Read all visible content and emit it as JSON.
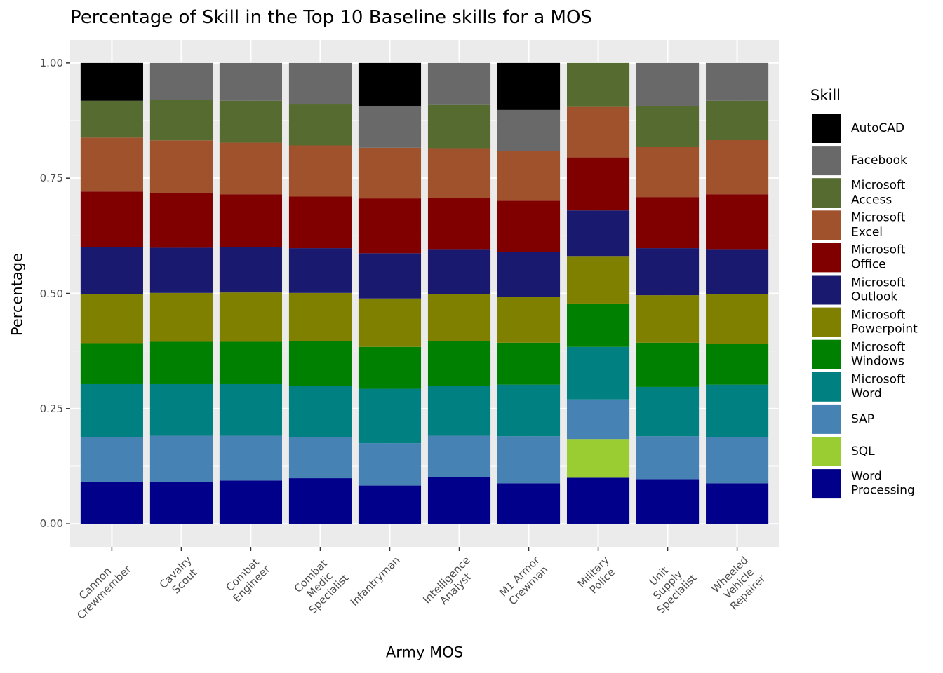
{
  "chart_data": {
    "type": "stacked-bar",
    "title": "Percentage of Skill in the Top 10 Baseline skills for a MOS",
    "x_label": "Army MOS",
    "y_label": "Percentage",
    "legend_title": "Skill",
    "legend_position": "right",
    "grid": true,
    "categories": [
      "Cannon\nCrewmember",
      "Cavalry\nScout",
      "Combat\nEngineer",
      "Combat\nMedic\nSpecialist",
      "Infantryman",
      "Intelligence\nAnalyst",
      "M1 Armor\nCrewman",
      "Military\nPolice",
      "Unit\nSupply\nSpecialist",
      "Wheeled\nVehicle\nRepairer"
    ],
    "ylim": [
      -0.05,
      1.05
    ],
    "yticks": [
      {
        "value": 0,
        "label": "0.00"
      },
      {
        "value": 0.25,
        "label": "0.25"
      },
      {
        "value": 0.5,
        "label": "0.50"
      },
      {
        "value": 0.75,
        "label": "0.75"
      },
      {
        "value": 1,
        "label": "1.00"
      }
    ],
    "series": [
      {
        "name": "AutoCAD",
        "color": "#000000",
        "values": [
          0.082,
          null,
          null,
          null,
          0.093,
          null,
          0.102,
          null,
          null,
          null
        ]
      },
      {
        "name": "Facebook",
        "color": "#696969",
        "values": [
          null,
          0.08,
          0.082,
          0.09,
          0.091,
          0.091,
          0.089,
          null,
          0.093,
          0.082
        ]
      },
      {
        "name": "Microsoft\nAccess",
        "color": "#556b2f",
        "values": [
          0.08,
          0.088,
          0.091,
          0.089,
          null,
          0.094,
          null,
          0.094,
          0.089,
          0.085
        ]
      },
      {
        "name": "Microsoft\nExcel",
        "color": "#a0522d",
        "values": [
          0.117,
          0.114,
          0.112,
          0.111,
          0.11,
          0.108,
          0.108,
          0.111,
          0.109,
          0.118
        ]
      },
      {
        "name": "Microsoft\nOffice",
        "color": "#800000",
        "values": [
          0.12,
          0.119,
          0.114,
          0.112,
          0.119,
          0.111,
          0.112,
          0.115,
          0.111,
          0.119
        ]
      },
      {
        "name": "Microsoft\nOutlook",
        "color": "#191970",
        "values": [
          0.102,
          0.098,
          0.099,
          0.097,
          0.098,
          0.098,
          0.096,
          0.099,
          0.102,
          0.098
        ]
      },
      {
        "name": "Microsoft\nPowerpoint",
        "color": "#808000",
        "values": [
          0.107,
          0.106,
          0.107,
          0.105,
          0.105,
          0.102,
          0.1,
          0.103,
          0.103,
          0.108
        ]
      },
      {
        "name": "Microsoft\nWindows",
        "color": "#008000",
        "values": [
          0.089,
          0.092,
          0.092,
          0.097,
          0.091,
          0.097,
          0.091,
          0.094,
          0.096,
          0.088
        ]
      },
      {
        "name": "Microsoft\nWord",
        "color": "#008080",
        "values": [
          0.115,
          0.112,
          0.112,
          0.111,
          0.118,
          0.108,
          0.112,
          0.114,
          0.107,
          0.114
        ]
      },
      {
        "name": "SAP",
        "color": "#4682b4",
        "values": [
          0.098,
          0.1,
          0.097,
          0.089,
          0.092,
          0.089,
          0.102,
          0.086,
          0.093,
          0.1
        ]
      },
      {
        "name": "SQL",
        "color": "#9acd32",
        "values": [
          null,
          null,
          null,
          null,
          null,
          null,
          null,
          0.084,
          null,
          null
        ]
      },
      {
        "name": "Word\nProcessing",
        "color": "#00008b",
        "values": [
          0.09,
          0.091,
          0.094,
          0.099,
          0.083,
          0.102,
          0.088,
          0.1,
          0.097,
          0.088
        ]
      }
    ]
  }
}
